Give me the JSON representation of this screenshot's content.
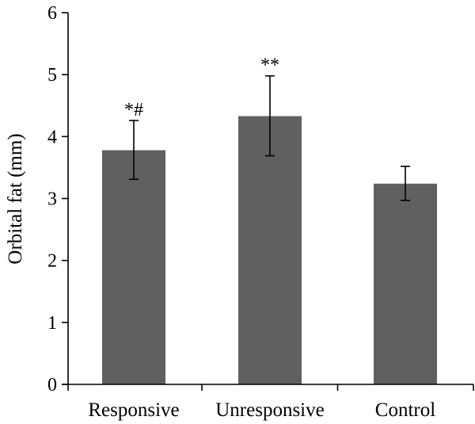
{
  "chart_data": {
    "type": "bar",
    "categories": [
      "Responsive",
      "Unresponsive",
      "Control"
    ],
    "values": [
      3.78,
      4.33,
      3.24
    ],
    "error_upper": [
      4.26,
      4.98,
      3.52
    ],
    "error_lower": [
      3.31,
      3.69,
      2.97
    ],
    "annotations": [
      "*#",
      "**",
      ""
    ],
    "ylabel": "Orbital fat (mm)",
    "xlabel": "",
    "title": "",
    "ylim": [
      0,
      6
    ],
    "yticks": [
      0,
      1,
      2,
      3,
      4,
      5,
      6
    ],
    "grid": false,
    "legend": "none",
    "bar_color": "#606060",
    "axis_color": "#000000"
  }
}
